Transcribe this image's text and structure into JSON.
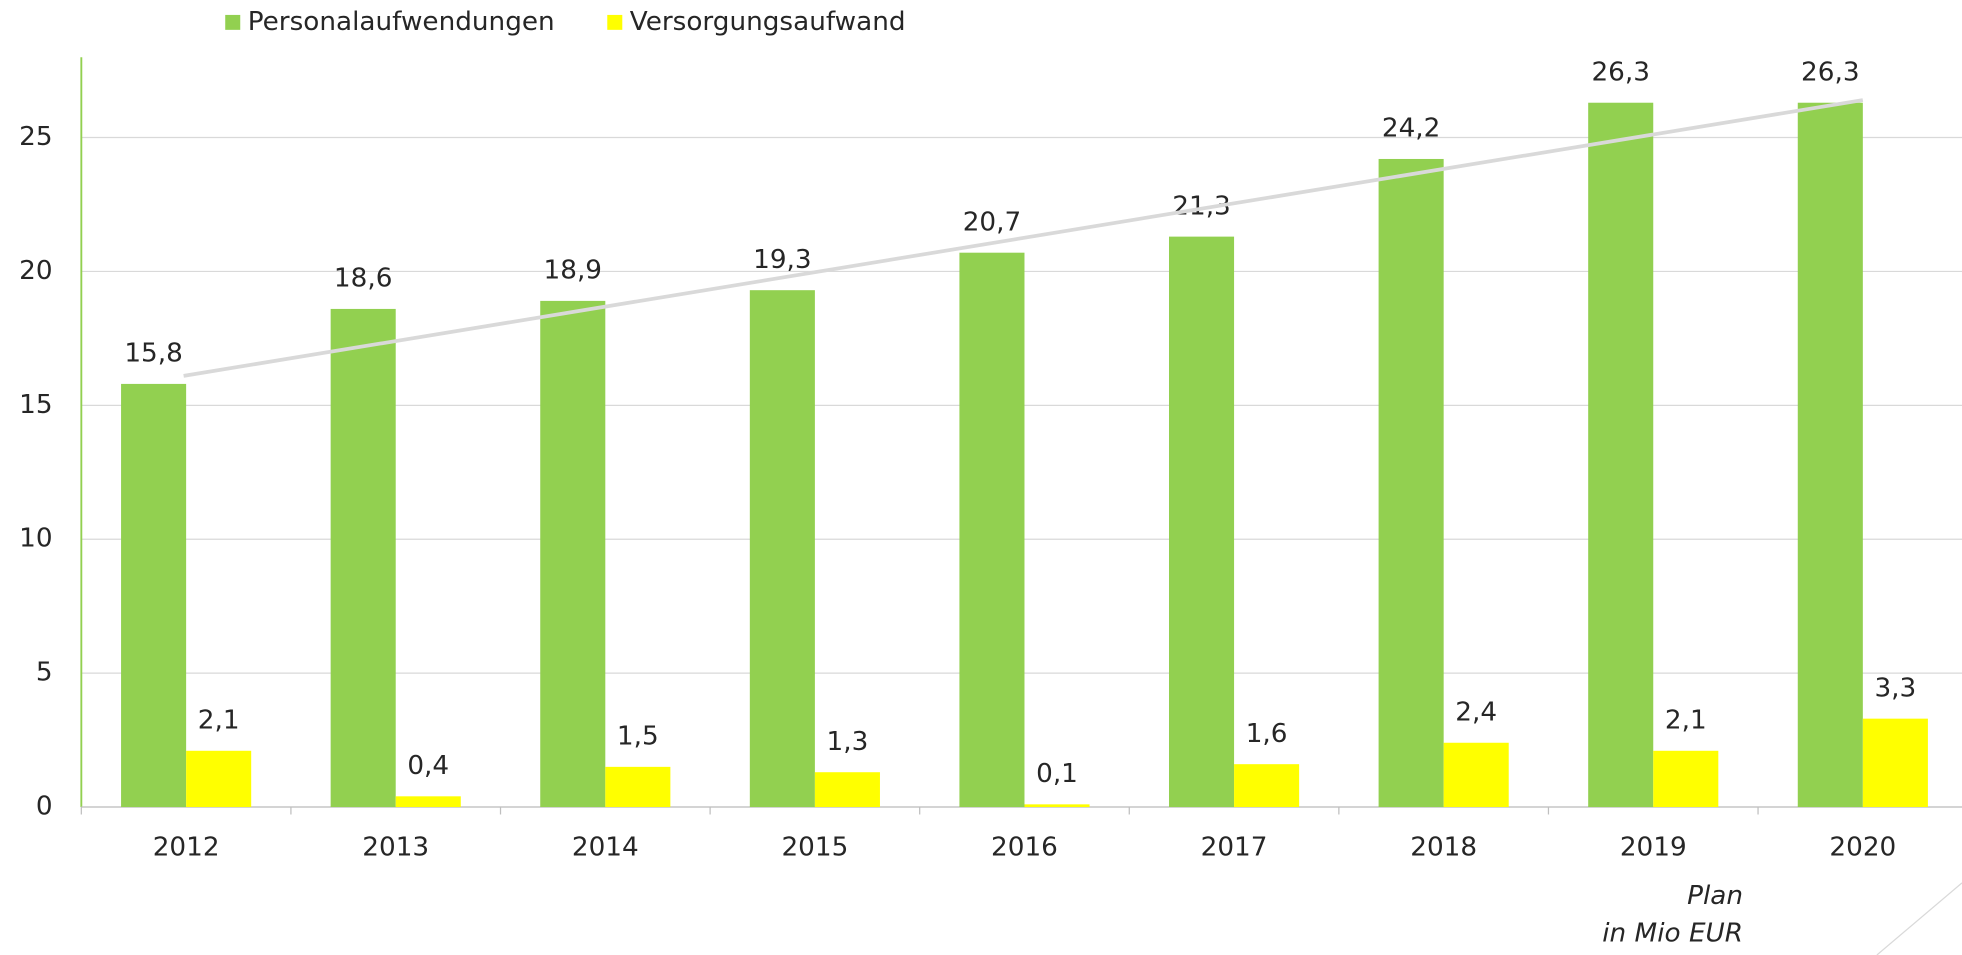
{
  "chart_data": {
    "type": "bar",
    "categories": [
      "2012",
      "2013",
      "2014",
      "2015",
      "2016",
      "2017",
      "2018",
      "2019",
      "2020"
    ],
    "series": [
      {
        "name": "Personalaufwendungen",
        "color": "#92d050",
        "values": [
          15.8,
          18.6,
          18.9,
          19.3,
          20.7,
          21.3,
          24.2,
          26.3,
          26.3
        ],
        "value_labels": [
          "15,8",
          "18,6",
          "18,9",
          "19,3",
          "20,7",
          "21,3",
          "24,2",
          "26,3",
          "26,3"
        ]
      },
      {
        "name": "Versorgungsaufwand",
        "color": "#ffff00",
        "values": [
          2.1,
          0.4,
          1.5,
          1.3,
          0.1,
          1.6,
          2.4,
          2.1,
          3.3
        ],
        "value_labels": [
          "2,1",
          "0,4",
          "1,5",
          "1,3",
          "0,1",
          "1,6",
          "2,4",
          "2,1",
          "3,3"
        ]
      }
    ],
    "trendline": {
      "color": "#d9d9d9",
      "values": [
        16.1,
        26.4
      ]
    },
    "ylim": [
      0,
      28
    ],
    "yticks": [
      0,
      5,
      10,
      15,
      20,
      25
    ],
    "grid": true,
    "legend": "top",
    "annotations": [
      "Plan",
      "in Mio EUR"
    ]
  }
}
